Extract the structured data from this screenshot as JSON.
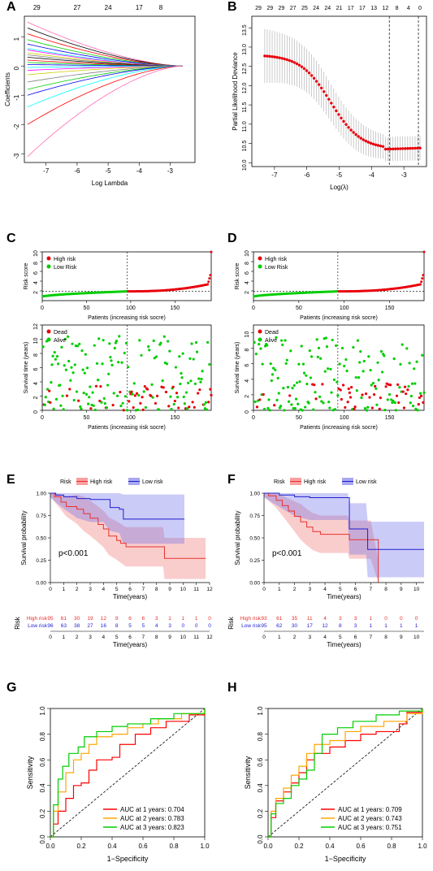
{
  "panel_labels": {
    "A": "A",
    "B": "B",
    "C": "C",
    "D": "D",
    "E": "E",
    "F": "F",
    "G": "G",
    "H": "H"
  },
  "chart_data": [
    {
      "id": "A",
      "type": "line",
      "xlabel": "Log Lambda",
      "ylabel": "Coefficients",
      "xlim": [
        -7.7,
        -2.2
      ],
      "ylim": [
        -3.3,
        1.7
      ],
      "x_ticks": [
        -7,
        -6,
        -5,
        -4,
        -3
      ],
      "y_ticks": [
        -3,
        -2,
        -1,
        0,
        1
      ],
      "top_ticks": [
        "29",
        "27",
        "24",
        "17",
        "8"
      ],
      "series_end_at_min_lambda": [
        1.5,
        1.3,
        1.1,
        0.9,
        0.75,
        0.6,
        0.55,
        0.45,
        0.38,
        0.3,
        0.2,
        0.12,
        0.05,
        -0.05,
        -0.15,
        -0.3,
        -0.55,
        -0.8,
        -1.0,
        -1.4,
        -2.0,
        -3.1
      ],
      "colors": [
        "#ff69b4",
        "#000000",
        "#ff0000",
        "#00cd00",
        "#0000ff",
        "#00ffff",
        "#ff00ff",
        "#cdcd00",
        "#808080",
        "#000000",
        "#ff0000",
        "#00cd00",
        "#0000ff",
        "#00ffff",
        "#ff00ff",
        "#cdcd00",
        "#808080",
        "#00cd00",
        "#0000ff",
        "#00ffff",
        "#ff0000",
        "#ff69b4"
      ]
    },
    {
      "id": "B",
      "type": "scatter",
      "xlabel": "Log(λ)",
      "ylabel": "Partial Likelihood Deviance",
      "xlim": [
        -7.7,
        -2.3
      ],
      "ylim": [
        9.9,
        13.8
      ],
      "x_ticks": [
        -7,
        -6,
        -5,
        -4,
        -3
      ],
      "y_ticks": [
        10.0,
        10.5,
        11.0,
        11.5,
        12.0,
        12.5,
        13.0,
        13.5
      ],
      "top_ticks": [
        "29",
        "29",
        "29",
        "27",
        "25",
        "24",
        "24",
        "21",
        "17",
        "17",
        "13",
        "12",
        "8",
        "4",
        "0"
      ],
      "vlines": [
        -3.45,
        -2.55
      ],
      "cv_x": [
        -7.3,
        -2.5
      ],
      "cv_y_start": 12.8,
      "cv_y_min": 10.35,
      "cv_y_end": 10.38,
      "cv_error": 0.7
    },
    {
      "id": "C-risk",
      "type": "scatter",
      "xlabel": "Patients (increasing risk socre)",
      "ylabel": "Risk score",
      "xlim": [
        0,
        191
      ],
      "ylim": [
        0,
        10
      ],
      "x_ticks": [
        0,
        50,
        100,
        150
      ],
      "y_ticks": [
        2,
        4,
        6,
        8,
        10
      ],
      "legend": [
        "High risk",
        "Low Risk"
      ],
      "n": 191,
      "cutoff_index": 96,
      "cutoff_value": 1.9
    },
    {
      "id": "C-surv",
      "type": "scatter",
      "xlabel": "Patients (increasing risk socre)",
      "ylabel": "Survival time (years)",
      "xlim": [
        0,
        191
      ],
      "ylim": [
        0,
        12
      ],
      "x_ticks": [
        0,
        50,
        100,
        150
      ],
      "y_ticks": [
        0,
        2,
        4,
        6,
        8,
        10,
        12
      ],
      "legend": [
        "Dead",
        "Alive"
      ],
      "cutoff_index": 96
    },
    {
      "id": "D-risk",
      "type": "scatter",
      "xlabel": "Patients (increasing risk socre)",
      "ylabel": "Risk score",
      "xlim": [
        0,
        188
      ],
      "ylim": [
        0,
        10
      ],
      "x_ticks": [
        0,
        50,
        100,
        150
      ],
      "y_ticks": [
        2,
        4,
        6,
        8,
        10
      ],
      "legend": [
        "High risk",
        "Low Risk"
      ],
      "n": 188,
      "cutoff_index": 93,
      "cutoff_value": 1.9
    },
    {
      "id": "D-surv",
      "type": "scatter",
      "xlabel": "Patients (increasing risk socre)",
      "ylabel": "Survival time (years)",
      "xlim": [
        0,
        188
      ],
      "ylim": [
        0,
        11
      ],
      "x_ticks": [
        0,
        50,
        100,
        150
      ],
      "y_ticks": [
        0,
        2,
        4,
        6,
        8,
        10
      ],
      "legend": [
        "Dead",
        "Alive"
      ],
      "cutoff_index": 93
    },
    {
      "id": "E",
      "type": "line",
      "xlabel": "Time(years)",
      "ylabel": "Survival probability",
      "legend_title": "Risk",
      "legend": [
        "High risk",
        "Low risk"
      ],
      "pvalue": "p<0.001",
      "xlim": [
        0,
        12
      ],
      "ylim": [
        0,
        1
      ],
      "x_ticks": [
        "0",
        "1",
        "2",
        "3",
        "4",
        "5",
        "6",
        "7",
        "8",
        "9",
        "10",
        "11",
        "12"
      ],
      "y_ticks": [
        "0.00",
        "0.25",
        "0.50",
        "0.75",
        "1.00"
      ],
      "high_curve": [
        [
          0,
          1.0
        ],
        [
          0.3,
          0.96
        ],
        [
          0.8,
          0.9
        ],
        [
          1.2,
          0.85
        ],
        [
          2.0,
          0.82
        ],
        [
          2.5,
          0.77
        ],
        [
          3.0,
          0.72
        ],
        [
          3.6,
          0.65
        ],
        [
          4.0,
          0.6
        ],
        [
          4.4,
          0.52
        ],
        [
          5.0,
          0.47
        ],
        [
          5.3,
          0.44
        ],
        [
          5.7,
          0.4
        ],
        [
          8.5,
          0.4
        ],
        [
          8.6,
          0.27
        ],
        [
          11.7,
          0.27
        ]
      ],
      "low_curve": [
        [
          0,
          1.0
        ],
        [
          0.4,
          0.98
        ],
        [
          1.0,
          0.96
        ],
        [
          2.0,
          0.94
        ],
        [
          3.0,
          0.93
        ],
        [
          4.0,
          0.93
        ],
        [
          4.5,
          0.84
        ],
        [
          5.2,
          0.82
        ],
        [
          5.5,
          0.71
        ],
        [
          10.1,
          0.71
        ]
      ],
      "table_title": "Risk",
      "table_xlabel": "Time(years)",
      "table_rows": [
        {
          "label": "High risk",
          "color": "#e8312b",
          "values": [
            "95",
            "61",
            "30",
            "19",
            "12",
            "9",
            "6",
            "6",
            "3",
            "1",
            "1",
            "1",
            "0"
          ]
        },
        {
          "label": "Low risk",
          "color": "#1f1fd0",
          "values": [
            "96",
            "63",
            "38",
            "27",
            "16",
            "8",
            "5",
            "5",
            "4",
            "3",
            "0",
            "0",
            "0"
          ]
        }
      ]
    },
    {
      "id": "F",
      "type": "line",
      "xlabel": "Time(years)",
      "ylabel": "Survival probability",
      "legend_title": "Risk",
      "legend": [
        "High risk",
        "Low risk"
      ],
      "pvalue": "p<0.001",
      "xlim": [
        0,
        10.5
      ],
      "ylim": [
        0,
        1
      ],
      "x_ticks": [
        "0",
        "1",
        "2",
        "3",
        "4",
        "5",
        "6",
        "7",
        "8",
        "9",
        "10"
      ],
      "y_ticks": [
        "0.00",
        "0.25",
        "0.50",
        "0.75",
        "1.00"
      ],
      "high_curve": [
        [
          0,
          1.0
        ],
        [
          0.3,
          0.97
        ],
        [
          0.8,
          0.92
        ],
        [
          1.2,
          0.86
        ],
        [
          1.6,
          0.8
        ],
        [
          2.0,
          0.74
        ],
        [
          2.4,
          0.68
        ],
        [
          2.8,
          0.62
        ],
        [
          3.2,
          0.57
        ],
        [
          3.7,
          0.54
        ],
        [
          5.5,
          0.54
        ],
        [
          5.6,
          0.48
        ],
        [
          7.0,
          0.48
        ],
        [
          7.5,
          0.0
        ]
      ],
      "low_curve": [
        [
          0,
          1.0
        ],
        [
          1.0,
          0.98
        ],
        [
          2.0,
          0.96
        ],
        [
          3.0,
          0.95
        ],
        [
          5.5,
          0.95
        ],
        [
          5.6,
          0.6
        ],
        [
          6.7,
          0.6
        ],
        [
          6.8,
          0.37
        ],
        [
          10.5,
          0.37
        ]
      ],
      "table_title": "Risk",
      "table_xlabel": "Time(years)",
      "table_rows": [
        {
          "label": "High risk",
          "color": "#e8312b",
          "values": [
            "93",
            "61",
            "35",
            "11",
            "4",
            "3",
            "3",
            "1",
            "0",
            "0",
            "0"
          ]
        },
        {
          "label": "Low risk",
          "color": "#1f1fd0",
          "values": [
            "95",
            "62",
            "30",
            "17",
            "12",
            "8",
            "3",
            "1",
            "1",
            "1",
            "1"
          ]
        }
      ]
    },
    {
      "id": "G",
      "type": "line",
      "xlabel": "1−Specificity",
      "ylabel": "Sensitivity",
      "xlim": [
        0,
        1
      ],
      "ylim": [
        0,
        1
      ],
      "x_ticks": [
        "0.0",
        "0.2",
        "0.4",
        "0.6",
        "0.8",
        "1.0"
      ],
      "y_ticks": [
        "0.0",
        "0.2",
        "0.4",
        "0.6",
        "0.8",
        "1.0"
      ],
      "series": [
        {
          "name": "AUC at 1 years: 0.704",
          "color": "#ff0000",
          "values": [
            [
              0,
              0
            ],
            [
              0.02,
              0.1
            ],
            [
              0.05,
              0.2
            ],
            [
              0.1,
              0.3
            ],
            [
              0.15,
              0.4
            ],
            [
              0.2,
              0.42
            ],
            [
              0.25,
              0.52
            ],
            [
              0.3,
              0.6
            ],
            [
              0.4,
              0.62
            ],
            [
              0.45,
              0.72
            ],
            [
              0.55,
              0.8
            ],
            [
              0.65,
              0.85
            ],
            [
              0.75,
              0.9
            ],
            [
              0.9,
              0.95
            ],
            [
              1,
              1
            ]
          ]
        },
        {
          "name": "AUC at 2 years: 0.783",
          "color": "#ffa500",
          "values": [
            [
              0,
              0
            ],
            [
              0.02,
              0.2
            ],
            [
              0.05,
              0.35
            ],
            [
              0.1,
              0.5
            ],
            [
              0.15,
              0.6
            ],
            [
              0.2,
              0.65
            ],
            [
              0.25,
              0.72
            ],
            [
              0.3,
              0.78
            ],
            [
              0.4,
              0.8
            ],
            [
              0.5,
              0.85
            ],
            [
              0.6,
              0.88
            ],
            [
              0.7,
              0.92
            ],
            [
              0.85,
              0.96
            ],
            [
              1,
              1
            ]
          ]
        },
        {
          "name": "AUC at 3 years: 0.823",
          "color": "#00cd00",
          "values": [
            [
              0,
              0
            ],
            [
              0.02,
              0.25
            ],
            [
              0.05,
              0.45
            ],
            [
              0.08,
              0.55
            ],
            [
              0.12,
              0.65
            ],
            [
              0.18,
              0.7
            ],
            [
              0.22,
              0.78
            ],
            [
              0.3,
              0.82
            ],
            [
              0.4,
              0.86
            ],
            [
              0.5,
              0.88
            ],
            [
              0.65,
              0.92
            ],
            [
              0.8,
              0.96
            ],
            [
              1,
              1
            ]
          ]
        }
      ]
    },
    {
      "id": "H",
      "type": "line",
      "xlabel": "1−Specificity",
      "ylabel": "Sensitivity",
      "xlim": [
        0,
        1
      ],
      "ylim": [
        0,
        1
      ],
      "x_ticks": [
        "0.0",
        "0.2",
        "0.4",
        "0.6",
        "0.8",
        "1.0"
      ],
      "y_ticks": [
        "0.0",
        "0.2",
        "0.4",
        "0.6",
        "0.8",
        "1.0"
      ],
      "series": [
        {
          "name": "AUC at 1 years: 0.709",
          "color": "#ff0000",
          "values": [
            [
              0,
              0
            ],
            [
              0.02,
              0.15
            ],
            [
              0.05,
              0.28
            ],
            [
              0.1,
              0.35
            ],
            [
              0.15,
              0.42
            ],
            [
              0.2,
              0.5
            ],
            [
              0.25,
              0.6
            ],
            [
              0.3,
              0.65
            ],
            [
              0.4,
              0.7
            ],
            [
              0.5,
              0.75
            ],
            [
              0.6,
              0.8
            ],
            [
              0.7,
              0.82
            ],
            [
              0.85,
              0.88
            ],
            [
              0.9,
              0.97
            ],
            [
              1,
              1
            ]
          ]
        },
        {
          "name": "AUC at 2 years: 0.743",
          "color": "#ffa500",
          "values": [
            [
              0,
              0
            ],
            [
              0.02,
              0.2
            ],
            [
              0.05,
              0.3
            ],
            [
              0.1,
              0.38
            ],
            [
              0.15,
              0.48
            ],
            [
              0.2,
              0.55
            ],
            [
              0.25,
              0.65
            ],
            [
              0.3,
              0.72
            ],
            [
              0.4,
              0.75
            ],
            [
              0.5,
              0.82
            ],
            [
              0.6,
              0.86
            ],
            [
              0.75,
              0.9
            ],
            [
              0.9,
              0.96
            ],
            [
              1,
              1
            ]
          ]
        },
        {
          "name": "AUC at 3 years: 0.751",
          "color": "#00cd00",
          "values": [
            [
              0,
              0
            ],
            [
              0.02,
              0.18
            ],
            [
              0.05,
              0.26
            ],
            [
              0.1,
              0.3
            ],
            [
              0.15,
              0.4
            ],
            [
              0.2,
              0.45
            ],
            [
              0.25,
              0.52
            ],
            [
              0.3,
              0.65
            ],
            [
              0.35,
              0.8
            ],
            [
              0.45,
              0.85
            ],
            [
              0.55,
              0.9
            ],
            [
              0.7,
              0.95
            ],
            [
              0.85,
              0.98
            ],
            [
              1,
              1
            ]
          ]
        }
      ]
    }
  ]
}
